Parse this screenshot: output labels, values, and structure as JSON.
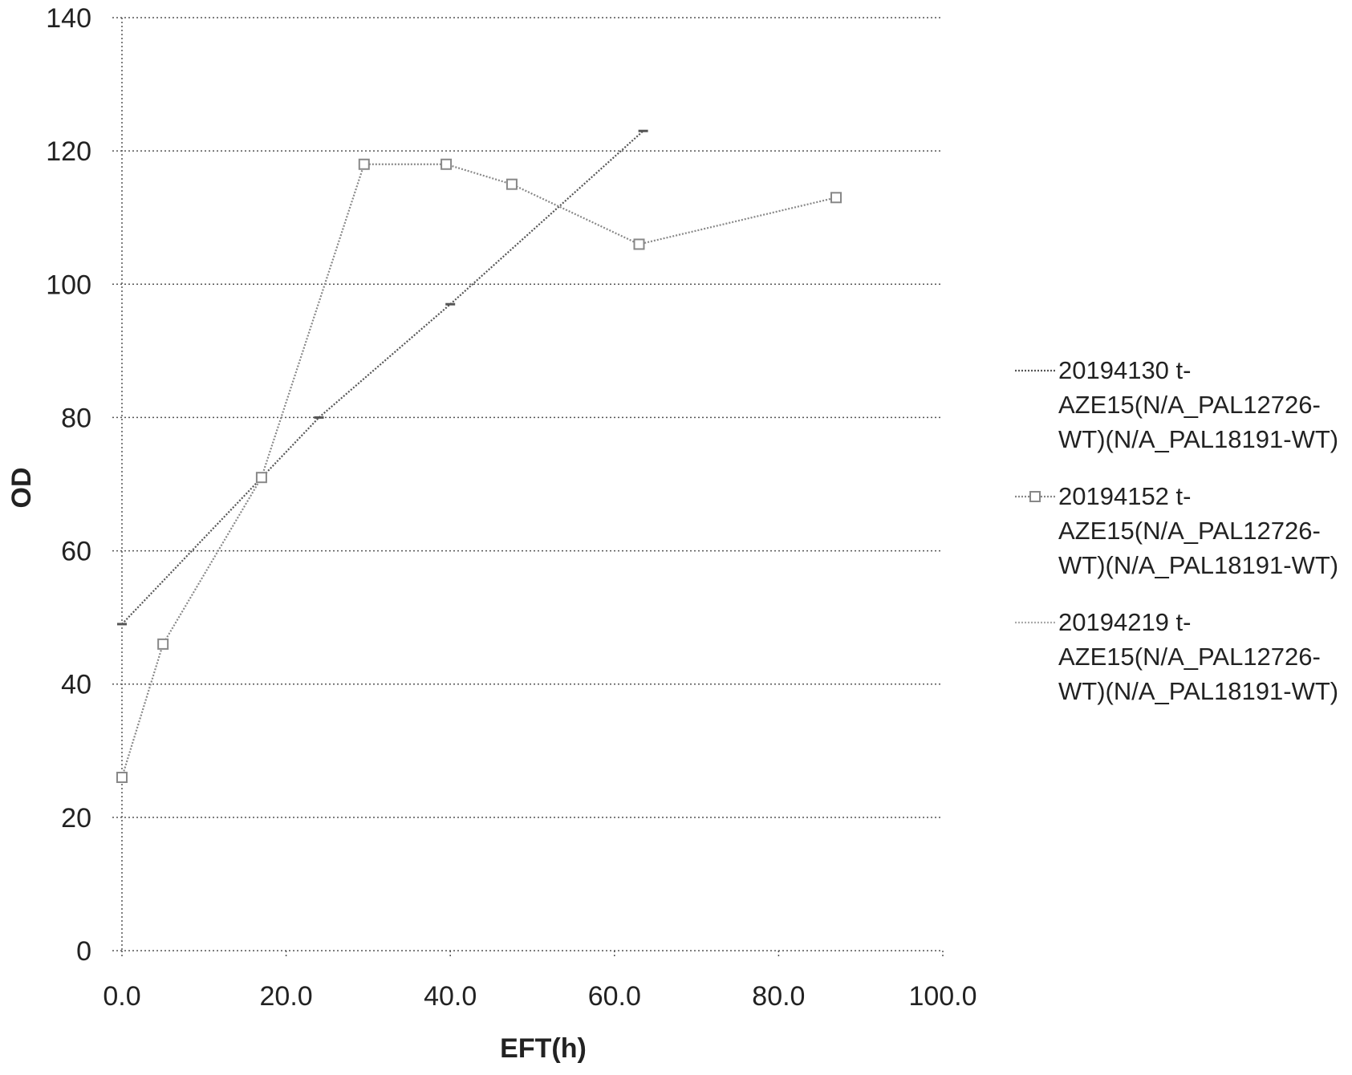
{
  "chart_data": {
    "type": "line",
    "xlabel": "EFT(h)",
    "ylabel": "OD",
    "xlim": [
      0,
      100
    ],
    "ylim": [
      0,
      140
    ],
    "x_ticks": [
      "0.0",
      "20.0",
      "40.0",
      "60.0",
      "80.0",
      "100.0"
    ],
    "x_tick_values": [
      0,
      20,
      40,
      60,
      80,
      100
    ],
    "y_ticks": [
      "0",
      "20",
      "40",
      "60",
      "80",
      "100",
      "120",
      "140"
    ],
    "y_tick_values": [
      0,
      20,
      40,
      60,
      80,
      100,
      120,
      140
    ],
    "grid": "horizontal",
    "legend_position": "right",
    "series": [
      {
        "name": "20194130 t-AZE15(N/A_PAL12726-WT)(N/A_PAL18191-WT)",
        "legend_lines": [
          "20194130 t-",
          "AZE15(N/A_PAL12726-",
          "WT)(N/A_PAL18191-WT)"
        ],
        "color": "#555555",
        "marker": "dash",
        "x": [
          0.0,
          24.0,
          40.0,
          63.5
        ],
        "y": [
          49,
          80,
          97,
          123
        ]
      },
      {
        "name": "20194152 t-AZE15(N/A_PAL12726-WT)(N/A_PAL18191-WT)",
        "legend_lines": [
          "20194152 t-",
          "AZE15(N/A_PAL12726-",
          "WT)(N/A_PAL18191-WT)"
        ],
        "color": "#888888",
        "marker": "square",
        "x": [
          0.0,
          5.0,
          17.0,
          29.5,
          39.5,
          47.5,
          63.0,
          87.0
        ],
        "y": [
          26,
          46,
          71,
          118,
          118,
          115,
          106,
          113
        ]
      },
      {
        "name": "20194219 t-AZE15(N/A_PAL12726-WT)(N/A_PAL18191-WT)",
        "legend_lines": [
          "20194219 t-",
          "AZE15(N/A_PAL12726-",
          "WT)(N/A_PAL18191-WT)"
        ],
        "color": "#aaaaaa",
        "marker": "dash",
        "x": [],
        "y": []
      }
    ]
  }
}
